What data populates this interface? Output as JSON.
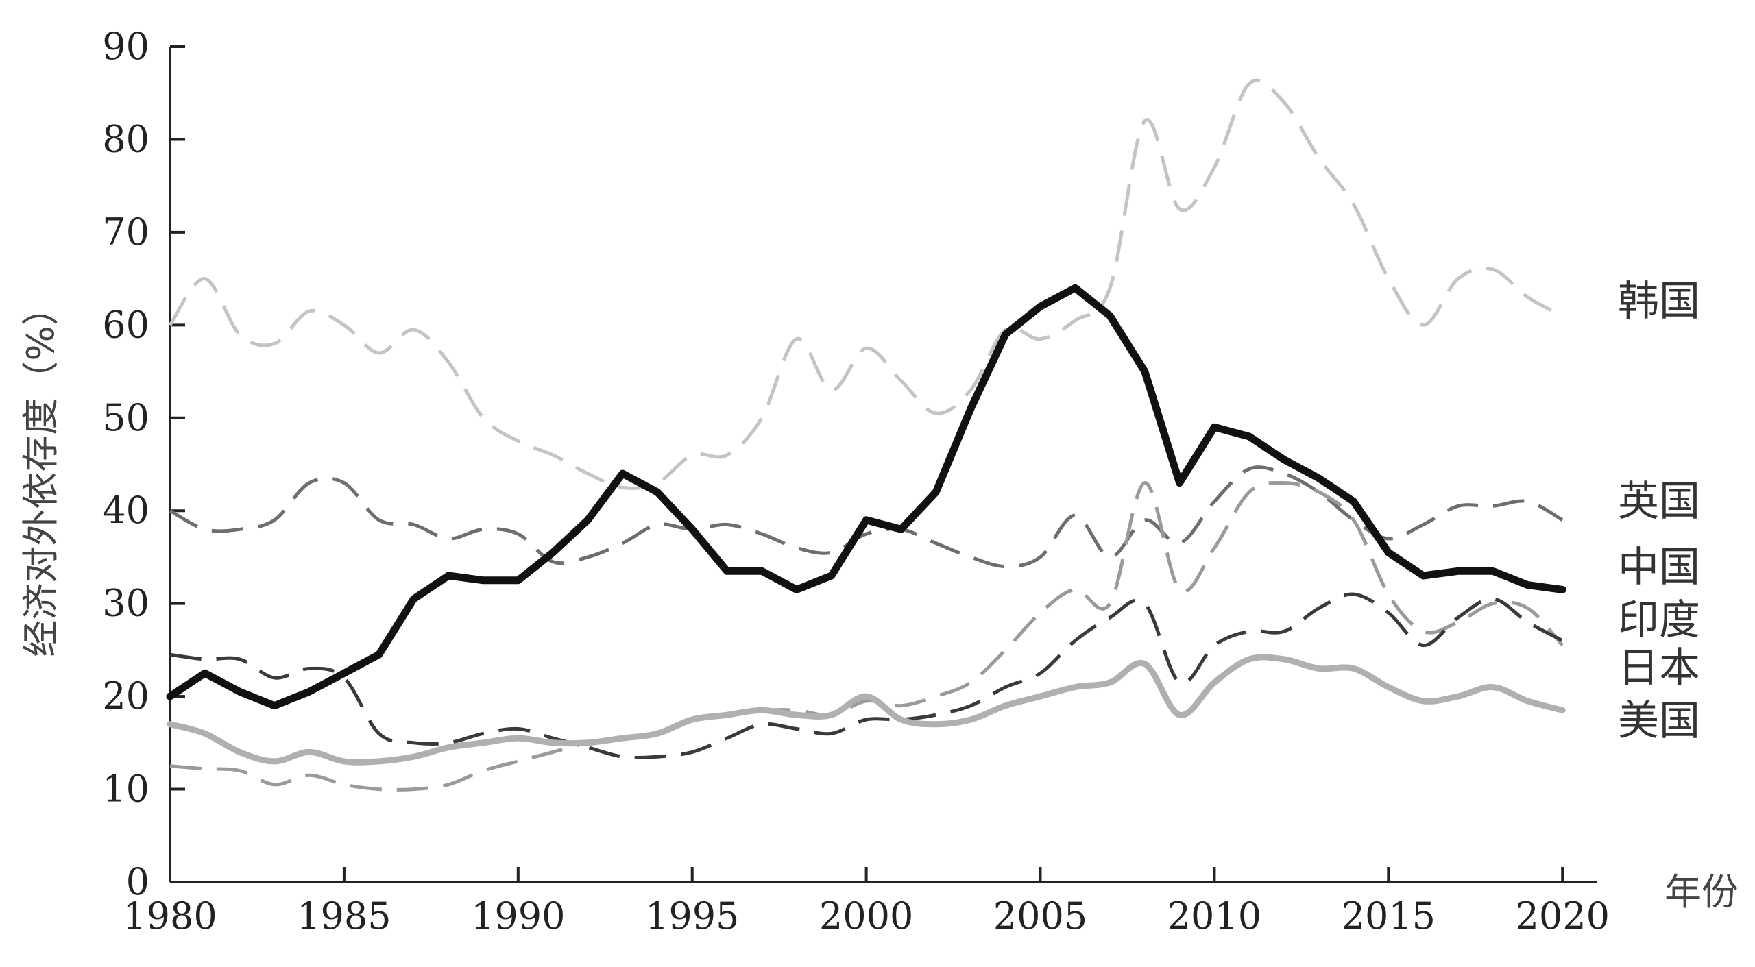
{
  "chart_data": {
    "type": "line",
    "ylabel": "经济对外依存度（%）",
    "xlabel": "年份",
    "xlim": [
      1980,
      2021
    ],
    "ylim": [
      0,
      90
    ],
    "x_ticks": [
      "1980",
      "1985",
      "1990",
      "1995",
      "2000",
      "2005",
      "2010",
      "2015",
      "2020"
    ],
    "y_ticks": [
      "0",
      "10",
      "20",
      "30",
      "40",
      "50",
      "60",
      "70",
      "80",
      "90"
    ],
    "grid": false,
    "legend": "inline labels at right end of series",
    "series": [
      {
        "name": "韩国",
        "style": "dashed",
        "color": "#c4c4c4",
        "x": [
          1980,
          1981,
          1982,
          1983,
          1984,
          1985,
          1986,
          1987,
          1988,
          1989,
          1990,
          1991,
          1992,
          1993,
          1994,
          1995,
          1996,
          1997,
          1998,
          1999,
          2000,
          2001,
          2002,
          2003,
          2004,
          2005,
          2006,
          2007,
          2008,
          2009,
          2010,
          2011,
          2012,
          2013,
          2014,
          2015,
          2016,
          2017,
          2018,
          2019,
          2020
        ],
        "values": [
          60,
          65,
          59,
          58,
          61.5,
          60,
          57,
          59.5,
          56,
          50,
          47.5,
          46,
          44,
          42.5,
          43,
          46,
          46,
          50,
          58.5,
          53,
          57.5,
          54,
          50.5,
          53,
          59.5,
          58.5,
          60.5,
          64,
          82,
          72.5,
          77,
          86,
          84,
          78,
          73,
          65,
          60,
          65,
          66,
          63,
          61
        ]
      },
      {
        "name": "英国",
        "style": "dashed",
        "color": "#6e6e6e",
        "x": [
          1980,
          1981,
          1982,
          1983,
          1984,
          1985,
          1986,
          1987,
          1988,
          1989,
          1990,
          1991,
          1992,
          1993,
          1994,
          1995,
          1996,
          1997,
          1998,
          1999,
          2000,
          2001,
          2002,
          2003,
          2004,
          2005,
          2006,
          2007,
          2008,
          2009,
          2010,
          2011,
          2012,
          2013,
          2014,
          2015,
          2016,
          2017,
          2018,
          2019,
          2020
        ],
        "values": [
          40,
          38,
          38,
          39,
          43,
          43,
          39,
          38.5,
          37,
          38,
          37.5,
          34.5,
          35,
          36.5,
          38.5,
          38,
          38.5,
          37.5,
          36,
          35.5,
          37.5,
          38,
          36.5,
          35,
          34,
          35,
          39.5,
          35,
          39,
          36.5,
          41,
          44.5,
          44,
          42,
          39,
          37,
          38.5,
          40.5,
          40.5,
          41,
          39
        ]
      },
      {
        "name": "中国",
        "style": "solid",
        "color": "#111111",
        "x": [
          1980,
          1981,
          1982,
          1983,
          1984,
          1985,
          1986,
          1987,
          1988,
          1989,
          1990,
          1991,
          1992,
          1993,
          1994,
          1995,
          1996,
          1997,
          1998,
          1999,
          2000,
          2001,
          2002,
          2003,
          2004,
          2005,
          2006,
          2007,
          2008,
          2009,
          2010,
          2011,
          2012,
          2013,
          2014,
          2015,
          2016,
          2017,
          2018,
          2019,
          2020
        ],
        "values": [
          20,
          22.5,
          20.5,
          19,
          20.5,
          22.5,
          24.5,
          30.5,
          33,
          32.5,
          32.5,
          35.5,
          39,
          44,
          42,
          38,
          33.5,
          33.5,
          31.5,
          33,
          39,
          38,
          42,
          51,
          59,
          62,
          64,
          61,
          55,
          43,
          49,
          48,
          45.5,
          43.5,
          41,
          35.5,
          33,
          33.5,
          33.5,
          32,
          31.5
        ]
      },
      {
        "name": "印度",
        "style": "dashed",
        "color": "#9a9a9a",
        "x": [
          1980,
          1981,
          1982,
          1983,
          1984,
          1985,
          1986,
          1987,
          1988,
          1989,
          1990,
          1991,
          1992,
          1993,
          1994,
          1995,
          1996,
          1997,
          1998,
          1999,
          2000,
          2001,
          2002,
          2003,
          2004,
          2005,
          2006,
          2007,
          2008,
          2009,
          2010,
          2011,
          2012,
          2013,
          2014,
          2015,
          2016,
          2017,
          2018,
          2019,
          2020
        ],
        "values": [
          12.5,
          12.2,
          12,
          10.5,
          11.5,
          10.5,
          10,
          10,
          10.5,
          12,
          13,
          14,
          15,
          15.5,
          16,
          17.5,
          18,
          18.5,
          18.5,
          18,
          19.5,
          19,
          20,
          21.5,
          25,
          29,
          31.5,
          30,
          43,
          31.5,
          36,
          42,
          43,
          42,
          39,
          31,
          27,
          28,
          30,
          29.5,
          25.5
        ]
      },
      {
        "name": "日本",
        "style": "dashed",
        "color": "#3a3a3a",
        "x": [
          1980,
          1981,
          1982,
          1983,
          1984,
          1985,
          1986,
          1987,
          1988,
          1989,
          1990,
          1991,
          1992,
          1993,
          1994,
          1995,
          1996,
          1997,
          1998,
          1999,
          2000,
          2001,
          2002,
          2003,
          2004,
          2005,
          2006,
          2007,
          2008,
          2009,
          2010,
          2011,
          2012,
          2013,
          2014,
          2015,
          2016,
          2017,
          2018,
          2019,
          2020
        ],
        "values": [
          24.5,
          24,
          24,
          22,
          23,
          22,
          16,
          15,
          15,
          16,
          16.5,
          15.5,
          14.5,
          13.5,
          13.5,
          14,
          15.5,
          17,
          16.5,
          16,
          17.5,
          17.5,
          18,
          19,
          21,
          22.5,
          26,
          28.5,
          30,
          21.5,
          25.5,
          27,
          27,
          29.5,
          31,
          29,
          25.5,
          28.5,
          30.5,
          28,
          26
        ]
      },
      {
        "name": "美国",
        "style": "solid",
        "color": "#b0b0b0",
        "x": [
          1980,
          1981,
          1982,
          1983,
          1984,
          1985,
          1986,
          1987,
          1988,
          1989,
          1990,
          1991,
          1992,
          1993,
          1994,
          1995,
          1996,
          1997,
          1998,
          1999,
          2000,
          2001,
          2002,
          2003,
          2004,
          2005,
          2006,
          2007,
          2008,
          2009,
          2010,
          2011,
          2012,
          2013,
          2014,
          2015,
          2016,
          2017,
          2018,
          2019,
          2020
        ],
        "values": [
          17,
          16,
          14,
          13,
          14,
          13,
          13,
          13.5,
          14.5,
          15,
          15.5,
          15,
          15,
          15.5,
          16,
          17.5,
          18,
          18.5,
          18,
          18,
          20,
          17.5,
          17,
          17.5,
          19,
          20,
          21,
          21.5,
          23.5,
          18,
          21.5,
          24,
          24,
          23,
          23,
          21,
          19.5,
          20,
          21,
          19.5,
          18.5
        ]
      }
    ]
  }
}
